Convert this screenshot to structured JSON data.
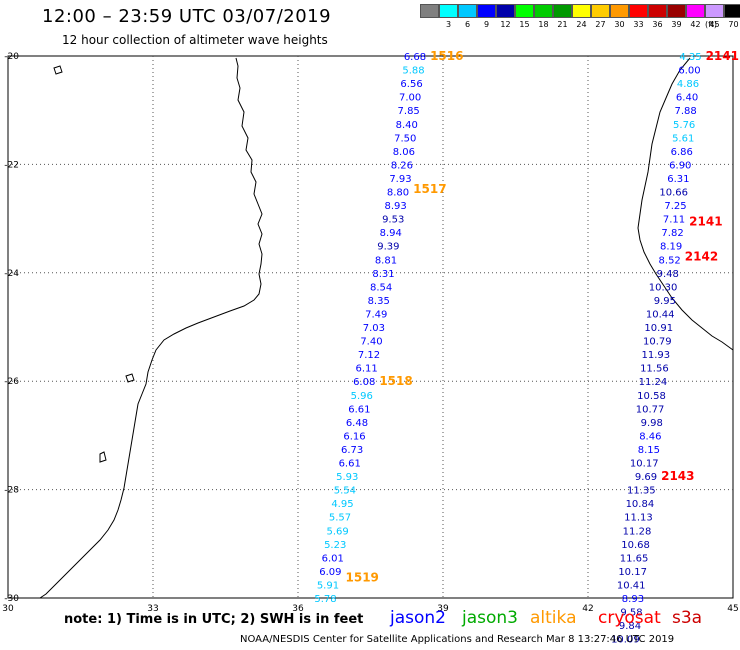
{
  "header": {
    "title": "12:00 – 23:59 UTC 03/07/2019",
    "subtitle": "12 hour collection of altimeter wave heights"
  },
  "colorbar": {
    "unit": "(ft)",
    "entries": [
      {
        "label": "",
        "color": "#808080"
      },
      {
        "label": "3",
        "color": "#00ffff"
      },
      {
        "label": "6",
        "color": "#00c8ff"
      },
      {
        "label": "9",
        "color": "#0000ff"
      },
      {
        "label": "12",
        "color": "#0000aa"
      },
      {
        "label": "15",
        "color": "#00ff00"
      },
      {
        "label": "18",
        "color": "#00cc00"
      },
      {
        "label": "21",
        "color": "#009900"
      },
      {
        "label": "24",
        "color": "#ffff00"
      },
      {
        "label": "27",
        "color": "#ffcc00"
      },
      {
        "label": "30",
        "color": "#ff9900"
      },
      {
        "label": "33",
        "color": "#ff0000"
      },
      {
        "label": "36",
        "color": "#cc0000"
      },
      {
        "label": "39",
        "color": "#990000"
      },
      {
        "label": "42",
        "color": "#ff00ff"
      },
      {
        "label": "45",
        "color": "#cc99ff"
      },
      {
        "label": "70",
        "color": "#000000"
      }
    ]
  },
  "axes": {
    "lon_ticks": [
      "30",
      "33",
      "36",
      "39",
      "42",
      "45"
    ],
    "lat_ticks": [
      "-20",
      "-22",
      "-24",
      "-26",
      "-28",
      "-30"
    ]
  },
  "tracks": [
    {
      "satellite": "altika",
      "passes": [
        {
          "label": "1516",
          "lat": -20.0
        },
        {
          "label": "1517",
          "lat": -22.45
        },
        {
          "label": "1518",
          "lat": -26.0
        },
        {
          "label": "1519",
          "lat": -29.62
        }
      ],
      "points": [
        {
          "lat": -20.0,
          "lon": 38.65,
          "swh": "6.68"
        },
        {
          "lat": -20.25,
          "lon": 38.62,
          "swh": "5.88"
        },
        {
          "lat": -20.5,
          "lon": 38.58,
          "swh": "6.56"
        },
        {
          "lat": -20.75,
          "lon": 38.55,
          "swh": "7.00"
        },
        {
          "lat": -21.0,
          "lon": 38.52,
          "swh": "7.85"
        },
        {
          "lat": -21.25,
          "lon": 38.48,
          "swh": "8.40"
        },
        {
          "lat": -21.5,
          "lon": 38.45,
          "swh": "7.50"
        },
        {
          "lat": -21.75,
          "lon": 38.42,
          "swh": "8.06"
        },
        {
          "lat": -22.0,
          "lon": 38.38,
          "swh": "8.26"
        },
        {
          "lat": -22.25,
          "lon": 38.35,
          "swh": "7.93"
        },
        {
          "lat": -22.5,
          "lon": 38.3,
          "swh": "8.80"
        },
        {
          "lat": -22.75,
          "lon": 38.25,
          "swh": "8.93"
        },
        {
          "lat": -23.0,
          "lon": 38.2,
          "swh": "9.53"
        },
        {
          "lat": -23.25,
          "lon": 38.15,
          "swh": "8.94"
        },
        {
          "lat": -23.5,
          "lon": 38.1,
          "swh": "9.39"
        },
        {
          "lat": -23.75,
          "lon": 38.05,
          "swh": "8.81"
        },
        {
          "lat": -24.0,
          "lon": 38.0,
          "swh": "8.31"
        },
        {
          "lat": -24.25,
          "lon": 37.95,
          "swh": "8.54"
        },
        {
          "lat": -24.5,
          "lon": 37.9,
          "swh": "8.35"
        },
        {
          "lat": -24.75,
          "lon": 37.85,
          "swh": "7.49"
        },
        {
          "lat": -25.0,
          "lon": 37.8,
          "swh": "7.03"
        },
        {
          "lat": -25.25,
          "lon": 37.75,
          "swh": "7.40"
        },
        {
          "lat": -25.5,
          "lon": 37.7,
          "swh": "7.12"
        },
        {
          "lat": -25.75,
          "lon": 37.65,
          "swh": "6.11"
        },
        {
          "lat": -26.0,
          "lon": 37.6,
          "swh": "6.08"
        },
        {
          "lat": -26.25,
          "lon": 37.55,
          "swh": "5.96"
        },
        {
          "lat": -26.5,
          "lon": 37.5,
          "swh": "6.61"
        },
        {
          "lat": -26.75,
          "lon": 37.45,
          "swh": "6.48"
        },
        {
          "lat": -27.0,
          "lon": 37.4,
          "swh": "6.16"
        },
        {
          "lat": -27.25,
          "lon": 37.35,
          "swh": "6.73"
        },
        {
          "lat": -27.5,
          "lon": 37.3,
          "swh": "6.61"
        },
        {
          "lat": -27.75,
          "lon": 37.25,
          "swh": "5.93"
        },
        {
          "lat": -28.0,
          "lon": 37.2,
          "swh": "5.54"
        },
        {
          "lat": -28.25,
          "lon": 37.15,
          "swh": "4.95"
        },
        {
          "lat": -28.5,
          "lon": 37.1,
          "swh": "5.57"
        },
        {
          "lat": -28.75,
          "lon": 37.05,
          "swh": "5.69"
        },
        {
          "lat": -29.0,
          "lon": 37.0,
          "swh": "5.23"
        },
        {
          "lat": -29.25,
          "lon": 36.95,
          "swh": "6.01"
        },
        {
          "lat": -29.5,
          "lon": 36.9,
          "swh": "6.09"
        },
        {
          "lat": -29.75,
          "lon": 36.85,
          "swh": "5.91"
        },
        {
          "lat": -30.0,
          "lon": 36.8,
          "swh": "5.78"
        }
      ]
    },
    {
      "satellite": "cryosat",
      "passes": [
        {
          "label": "2141",
          "lat": -20.0
        },
        {
          "label": "2141",
          "lat": -23.05
        },
        {
          "label": "2142",
          "lat": -23.7
        },
        {
          "label": "2143",
          "lat": -27.75
        }
      ],
      "points": [
        {
          "lat": -20.0,
          "lon": 44.35,
          "swh": "4.35"
        },
        {
          "lat": -20.25,
          "lon": 44.33,
          "swh": "6.00"
        },
        {
          "lat": -20.5,
          "lon": 44.3,
          "swh": "4.86"
        },
        {
          "lat": -20.75,
          "lon": 44.28,
          "swh": "6.40"
        },
        {
          "lat": -21.0,
          "lon": 44.25,
          "swh": "7.88"
        },
        {
          "lat": -21.25,
          "lon": 44.22,
          "swh": "5.76"
        },
        {
          "lat": -21.5,
          "lon": 44.2,
          "swh": "5.61"
        },
        {
          "lat": -21.75,
          "lon": 44.17,
          "swh": "6.86"
        },
        {
          "lat": -22.0,
          "lon": 44.14,
          "swh": "6.90"
        },
        {
          "lat": -22.25,
          "lon": 44.1,
          "swh": "6.31"
        },
        {
          "lat": -22.5,
          "lon": 44.07,
          "swh": "10.66"
        },
        {
          "lat": -22.75,
          "lon": 44.04,
          "swh": "7.25"
        },
        {
          "lat": -23.0,
          "lon": 44.01,
          "swh": "7.11"
        },
        {
          "lat": -23.25,
          "lon": 43.98,
          "swh": "7.82"
        },
        {
          "lat": -23.5,
          "lon": 43.95,
          "swh": "8.19"
        },
        {
          "lat": -23.75,
          "lon": 43.92,
          "swh": "8.52"
        },
        {
          "lat": -24.0,
          "lon": 43.88,
          "swh": "9.48"
        },
        {
          "lat": -24.25,
          "lon": 43.85,
          "swh": "10.30"
        },
        {
          "lat": -24.5,
          "lon": 43.82,
          "swh": "9.95"
        },
        {
          "lat": -24.75,
          "lon": 43.79,
          "swh": "10.44"
        },
        {
          "lat": -25.0,
          "lon": 43.76,
          "swh": "10.91"
        },
        {
          "lat": -25.25,
          "lon": 43.73,
          "swh": "10.79"
        },
        {
          "lat": -25.5,
          "lon": 43.7,
          "swh": "11.93"
        },
        {
          "lat": -25.75,
          "lon": 43.67,
          "swh": "11.56"
        },
        {
          "lat": -26.0,
          "lon": 43.64,
          "swh": "11.24"
        },
        {
          "lat": -26.25,
          "lon": 43.61,
          "swh": "10.58"
        },
        {
          "lat": -26.5,
          "lon": 43.58,
          "swh": "10.77"
        },
        {
          "lat": -26.75,
          "lon": 43.55,
          "swh": "9.98"
        },
        {
          "lat": -27.0,
          "lon": 43.52,
          "swh": "8.46"
        },
        {
          "lat": -27.25,
          "lon": 43.49,
          "swh": "8.15"
        },
        {
          "lat": -27.5,
          "lon": 43.46,
          "swh": "10.17"
        },
        {
          "lat": -27.75,
          "lon": 43.43,
          "swh": "9.69"
        },
        {
          "lat": -28.0,
          "lon": 43.4,
          "swh": "11.35"
        },
        {
          "lat": -28.25,
          "lon": 43.37,
          "swh": "10.84"
        },
        {
          "lat": -28.5,
          "lon": 43.34,
          "swh": "11.13"
        },
        {
          "lat": -28.75,
          "lon": 43.31,
          "swh": "11.28"
        },
        {
          "lat": -29.0,
          "lon": 43.28,
          "swh": "10.68"
        },
        {
          "lat": -29.25,
          "lon": 43.25,
          "swh": "11.65"
        },
        {
          "lat": -29.5,
          "lon": 43.22,
          "swh": "10.17"
        },
        {
          "lat": -29.75,
          "lon": 43.19,
          "swh": "10.41"
        },
        {
          "lat": -30.0,
          "lon": 43.16,
          "swh": "8.93"
        },
        {
          "lat": -30.25,
          "lon": 43.13,
          "swh": "9.58"
        },
        {
          "lat": -30.5,
          "lon": 43.1,
          "swh": "9.84"
        },
        {
          "lat": -30.75,
          "lon": 43.07,
          "swh": "10.09"
        }
      ]
    }
  ],
  "note": "note: 1) Time is in UTC; 2) SWH is in feet",
  "legend": [
    {
      "name": "jason2",
      "color": "#0000ff"
    },
    {
      "name": "jason3",
      "color": "#00aa00"
    },
    {
      "name": "altika",
      "color": "#ff9900"
    },
    {
      "name": "cryosat",
      "color": "#ff0000"
    },
    {
      "name": "s3a",
      "color": "#cc0000"
    }
  ],
  "footer": "NOAA/NESDIS Center for Satellite Applications and Research   Mar  8 13:27:46 UTC 2019"
}
